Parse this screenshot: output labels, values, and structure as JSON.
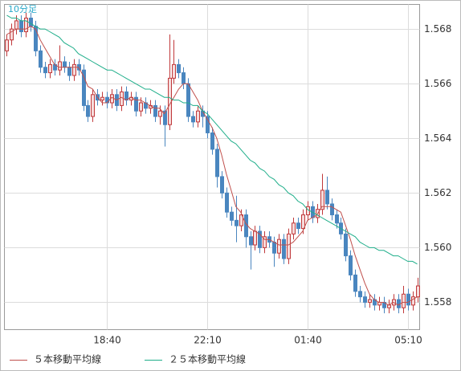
{
  "chart_data": {
    "type": "candlestick",
    "title": "10分足",
    "categories": [
      null,
      null,
      null,
      null,
      null,
      null,
      null,
      null,
      null,
      null,
      null,
      null,
      null,
      null,
      null,
      null,
      null,
      null,
      null,
      null,
      null,
      "18:40",
      null,
      null,
      null,
      null,
      null,
      null,
      null,
      null,
      null,
      null,
      null,
      null,
      null,
      null,
      null,
      null,
      null,
      null,
      null,
      null,
      "22:10",
      null,
      null,
      null,
      null,
      null,
      null,
      null,
      null,
      null,
      null,
      null,
      null,
      null,
      null,
      null,
      null,
      null,
      null,
      null,
      null,
      "01:40",
      null,
      null,
      null,
      null,
      null,
      null,
      null,
      null,
      null,
      null,
      null,
      null,
      null,
      null,
      null,
      null,
      null,
      null,
      null,
      null,
      "05:10",
      null,
      null
    ],
    "open": [
      1.5672,
      1.5676,
      1.568,
      1.5683,
      1.5679,
      1.5684,
      1.5681,
      1.5672,
      1.5666,
      1.5664,
      1.5667,
      1.5665,
      1.5668,
      1.5666,
      1.5663,
      1.5667,
      1.5665,
      1.5652,
      1.5648,
      1.5656,
      1.5654,
      1.5655,
      1.5653,
      1.5656,
      1.5652,
      1.5657,
      1.5654,
      1.5655,
      1.565,
      1.5653,
      1.5651,
      1.5652,
      1.5648,
      1.565,
      1.5645,
      1.5662,
      1.5667,
      1.5664,
      1.566,
      1.5648,
      1.5646,
      1.565,
      1.5648,
      1.5642,
      1.5636,
      1.5626,
      1.562,
      1.5613,
      1.561,
      1.5608,
      1.5612,
      1.5604,
      1.5601,
      1.5606,
      1.56,
      1.5604,
      1.5602,
      1.5598,
      1.5603,
      1.5596,
      1.5605,
      1.5609,
      1.5607,
      1.5612,
      1.5615,
      1.5611,
      1.5614,
      1.5621,
      1.5616,
      1.5612,
      1.5609,
      1.5605,
      1.5597,
      1.559,
      1.5584,
      1.5582,
      1.558,
      1.5581,
      1.5579,
      1.558,
      1.5578,
      1.5579,
      1.5581,
      1.5578,
      1.5583,
      1.5579,
      1.5582
    ],
    "high": [
      1.5678,
      1.5682,
      1.5685,
      1.5685,
      1.5686,
      1.5686,
      1.5683,
      1.5674,
      1.5668,
      1.5669,
      1.5669,
      1.5674,
      1.567,
      1.5668,
      1.5669,
      1.5669,
      1.5667,
      1.5654,
      1.5658,
      1.5658,
      1.5657,
      1.5657,
      1.5658,
      1.5658,
      1.5659,
      1.5659,
      1.5657,
      1.5657,
      1.5655,
      1.5655,
      1.5654,
      1.5654,
      1.5652,
      1.5652,
      1.5678,
      1.5676,
      1.5669,
      1.5666,
      1.5662,
      1.565,
      1.5652,
      1.5652,
      1.565,
      1.5644,
      1.5638,
      1.5628,
      1.5622,
      1.5615,
      1.5619,
      1.5614,
      1.5614,
      1.5606,
      1.5608,
      1.5608,
      1.5606,
      1.5606,
      1.5604,
      1.5605,
      1.5605,
      1.5607,
      1.5611,
      1.5611,
      1.5614,
      1.5617,
      1.5617,
      1.5616,
      1.5627,
      1.5626,
      1.5618,
      1.5614,
      1.5611,
      1.5607,
      1.5599,
      1.5592,
      1.5586,
      1.5584,
      1.5583,
      1.5583,
      1.5582,
      1.5582,
      1.5581,
      1.5583,
      1.5583,
      1.5586,
      1.5585,
      1.5584,
      1.5589
    ],
    "low": [
      1.567,
      1.5674,
      1.5678,
      1.5677,
      1.5677,
      1.5679,
      1.567,
      1.5664,
      1.5662,
      1.5662,
      1.5663,
      1.5663,
      1.5664,
      1.5661,
      1.5661,
      1.5663,
      1.565,
      1.5646,
      1.5646,
      1.5652,
      1.5652,
      1.5651,
      1.5651,
      1.565,
      1.565,
      1.5652,
      1.5652,
      1.5648,
      1.5648,
      1.5649,
      1.5649,
      1.5646,
      1.5645,
      1.5637,
      1.5643,
      1.566,
      1.5662,
      1.5658,
      1.5646,
      1.5644,
      1.5644,
      1.5644,
      1.564,
      1.5634,
      1.5622,
      1.5618,
      1.5611,
      1.5608,
      1.5602,
      1.5606,
      1.56,
      1.5592,
      1.5599,
      1.5598,
      1.5598,
      1.56,
      1.5593,
      1.5596,
      1.5594,
      1.5594,
      1.5603,
      1.5605,
      1.5605,
      1.561,
      1.5609,
      1.5609,
      1.5612,
      1.5614,
      1.561,
      1.5607,
      1.5603,
      1.5595,
      1.5588,
      1.5582,
      1.558,
      1.5578,
      1.5578,
      1.5577,
      1.5577,
      1.5576,
      1.5576,
      1.5577,
      1.5576,
      1.5576,
      1.5577,
      1.5577,
      1.558
    ],
    "close": [
      1.5676,
      1.568,
      1.5683,
      1.5679,
      1.5684,
      1.5681,
      1.5672,
      1.5666,
      1.5664,
      1.5667,
      1.5665,
      1.5668,
      1.5666,
      1.5663,
      1.5667,
      1.5665,
      1.5652,
      1.5648,
      1.5656,
      1.5654,
      1.5655,
      1.5653,
      1.5656,
      1.5652,
      1.5657,
      1.5654,
      1.5655,
      1.565,
      1.5653,
      1.5651,
      1.5652,
      1.5648,
      1.565,
      1.5645,
      1.5662,
      1.5667,
      1.5664,
      1.566,
      1.5648,
      1.5646,
      1.565,
      1.5648,
      1.5642,
      1.5636,
      1.5626,
      1.562,
      1.5613,
      1.561,
      1.5608,
      1.5612,
      1.5604,
      1.5601,
      1.5606,
      1.56,
      1.5604,
      1.5602,
      1.5598,
      1.5603,
      1.5596,
      1.5605,
      1.5609,
      1.5607,
      1.5612,
      1.5615,
      1.5611,
      1.5614,
      1.5621,
      1.5616,
      1.5612,
      1.5609,
      1.5605,
      1.5597,
      1.559,
      1.5584,
      1.5582,
      1.558,
      1.5581,
      1.5579,
      1.558,
      1.5578,
      1.5579,
      1.5581,
      1.5578,
      1.5583,
      1.5579,
      1.5582,
      1.5586
    ],
    "up_color": "#c0393b",
    "up_fill": "#f6dcdc",
    "down_color": "#4a86bf",
    "series": [
      {
        "name": "５本移動平均線",
        "color": "#c0504d",
        "values": [
          1.5678,
          1.5679,
          1.568,
          1.568,
          1.568,
          1.5681,
          1.568,
          1.5676,
          1.5673,
          1.567,
          1.5667,
          1.5666,
          1.5666,
          1.5666,
          1.5666,
          1.5666,
          1.5663,
          1.5659,
          1.5658,
          1.5655,
          1.5653,
          1.5653,
          1.5655,
          1.5654,
          1.5655,
          1.5654,
          1.5655,
          1.5654,
          1.5654,
          1.5653,
          1.5652,
          1.5651,
          1.5651,
          1.5649,
          1.5652,
          1.5655,
          1.5658,
          1.566,
          1.566,
          1.5657,
          1.5654,
          1.565,
          1.5647,
          1.5644,
          1.564,
          1.5634,
          1.5627,
          1.5621,
          1.5615,
          1.5613,
          1.5609,
          1.5607,
          1.5606,
          1.5605,
          1.5603,
          1.5603,
          1.5602,
          1.5601,
          1.5601,
          1.5601,
          1.5602,
          1.5604,
          1.5606,
          1.561,
          1.5611,
          1.5612,
          1.5615,
          1.5615,
          1.5615,
          1.5614,
          1.5613,
          1.5608,
          1.5603,
          1.5597,
          1.5592,
          1.5587,
          1.5583,
          1.5581,
          1.558,
          1.558,
          1.5579,
          1.558,
          1.5579,
          1.558,
          1.558,
          1.5581,
          1.5582
        ]
      },
      {
        "name": "２５本移動平均線",
        "color": "#1fae8a",
        "values": [
          1.5685,
          1.5684,
          1.5684,
          1.5683,
          1.5683,
          1.5682,
          1.5681,
          1.568,
          1.568,
          1.5679,
          1.5678,
          1.5677,
          1.5675,
          1.5674,
          1.5673,
          1.5671,
          1.567,
          1.5669,
          1.5668,
          1.5667,
          1.5666,
          1.5665,
          1.5665,
          1.5664,
          1.5663,
          1.5662,
          1.5661,
          1.566,
          1.5659,
          1.5658,
          1.5658,
          1.5657,
          1.5656,
          1.5655,
          1.5655,
          1.5654,
          1.5654,
          1.5653,
          1.5653,
          1.5652,
          1.5652,
          1.565,
          1.5649,
          1.5647,
          1.5645,
          1.5643,
          1.5641,
          1.5639,
          1.5638,
          1.5636,
          1.5634,
          1.5632,
          1.5631,
          1.5629,
          1.5628,
          1.5626,
          1.5625,
          1.5623,
          1.5622,
          1.562,
          1.5619,
          1.5617,
          1.5616,
          1.5614,
          1.5613,
          1.5612,
          1.5611,
          1.561,
          1.5609,
          1.5608,
          1.5607,
          1.5606,
          1.5605,
          1.5604,
          1.5602,
          1.5601,
          1.56,
          1.56,
          1.5599,
          1.5599,
          1.5598,
          1.5597,
          1.5597,
          1.5596,
          1.5595,
          1.5595,
          1.5594
        ]
      }
    ],
    "ylim": [
      1.557,
      1.5689
    ],
    "yticks": [
      1.558,
      {
        "value": 1.56,
        "label": "1.560"
      },
      1.562,
      1.564,
      1.566,
      1.568
    ],
    "grid": true
  }
}
